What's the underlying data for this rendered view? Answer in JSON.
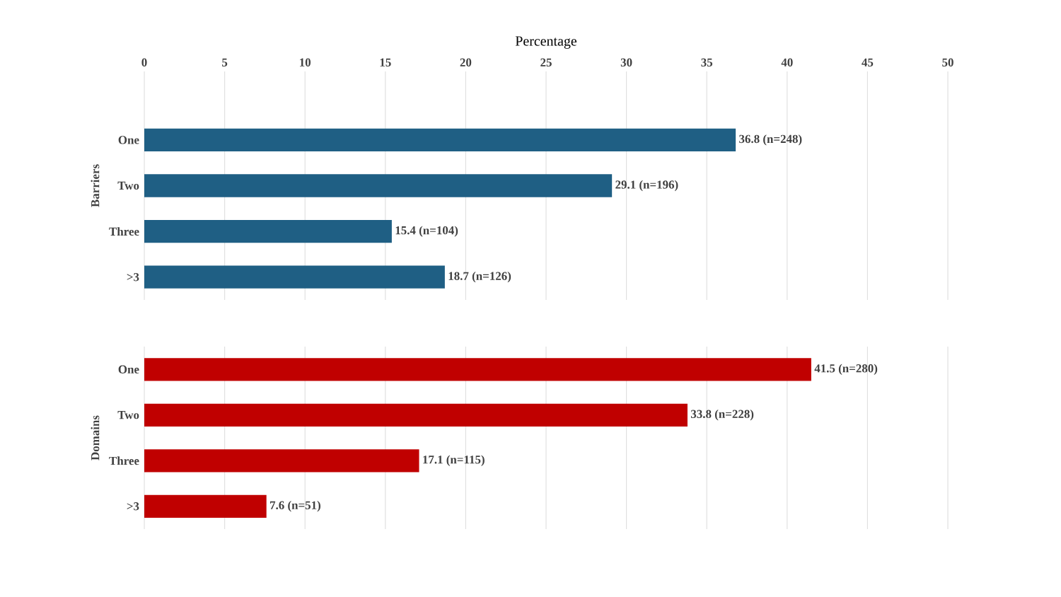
{
  "chart_data": [
    {
      "type": "bar",
      "orientation": "horizontal",
      "xlabel": "Percentage",
      "ylabel": "Barriers",
      "categories": [
        "One",
        "Two",
        "Three",
        ">3"
      ],
      "values": [
        36.8,
        29.1,
        15.4,
        18.7
      ],
      "color": "#1f5f84",
      "value_labels": [
        "36.8 (n=248)",
        "29.1 (n=196)",
        "15.4 (n=104)",
        "18.7 (n=126)"
      ],
      "xlim": [
        0,
        50
      ],
      "xticks": [
        0,
        5,
        10,
        15,
        20,
        25,
        30,
        35,
        40,
        45,
        50
      ],
      "grid": "x"
    },
    {
      "type": "bar",
      "orientation": "horizontal",
      "ylabel": "Domains",
      "categories": [
        "One",
        "Two",
        "Three",
        ">3"
      ],
      "values": [
        41.5,
        33.8,
        17.1,
        7.6
      ],
      "color": "#c00000",
      "value_labels": [
        "41.5 (n=280)",
        "33.8 (n=228)",
        "17.1 (n=115)",
        "7.6 (n=51)"
      ],
      "xlim": [
        0,
        50
      ],
      "xticks": [
        0,
        5,
        10,
        15,
        20,
        25,
        30,
        35,
        40,
        45,
        50
      ],
      "grid": "x",
      "tick_labels": "y"
    }
  ]
}
